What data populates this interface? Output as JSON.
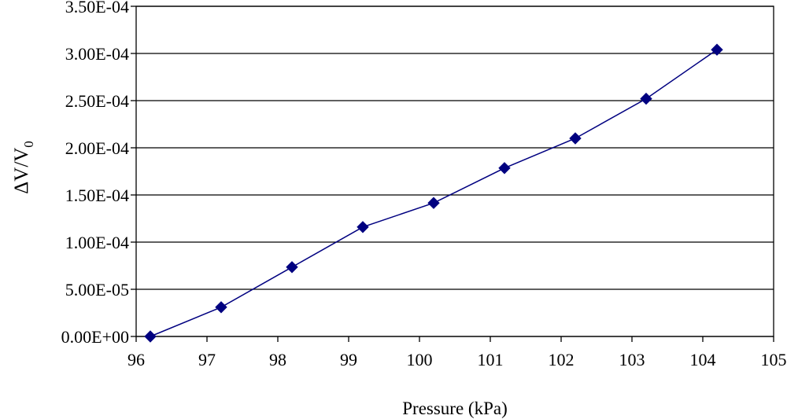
{
  "chart_data": {
    "type": "scatter",
    "title": "",
    "xlabel": "Pressure (kPa)",
    "ylabel": {
      "main": "ΔV/V",
      "subscript": "0"
    },
    "xlim": [
      96,
      105
    ],
    "ylim": [
      0,
      0.00035
    ],
    "x_ticks": [
      96,
      97,
      98,
      99,
      100,
      101,
      102,
      103,
      104,
      105
    ],
    "y_ticks": [
      0,
      5e-05,
      0.0001,
      0.00015,
      0.0002,
      0.00025,
      0.0003,
      0.00035
    ],
    "x_tick_labels": [
      "96",
      "97",
      "98",
      "99",
      "100",
      "101",
      "102",
      "103",
      "104",
      "105"
    ],
    "y_tick_labels": [
      "0.00E+00",
      "5.00E-05",
      "1.00E-04",
      "1.50E-04",
      "2.00E-04",
      "2.50E-04",
      "3.00E-04",
      "3.50E-04"
    ],
    "grid": {
      "horizontal": true,
      "vertical": false
    },
    "legend": "none",
    "marker": "diamond",
    "colors": {
      "series": "#000080",
      "grid": "#000000",
      "axis": "#000000"
    },
    "series": [
      {
        "x": [
          96.2,
          97.2,
          98.2,
          99.2,
          100.2,
          101.2,
          102.2,
          103.2,
          104.2
        ],
        "y": [
          0,
          3.1e-05,
          7.35e-05,
          0.000116,
          0.0001415,
          0.0001785,
          0.00021,
          0.000252,
          0.000304
        ]
      }
    ]
  }
}
